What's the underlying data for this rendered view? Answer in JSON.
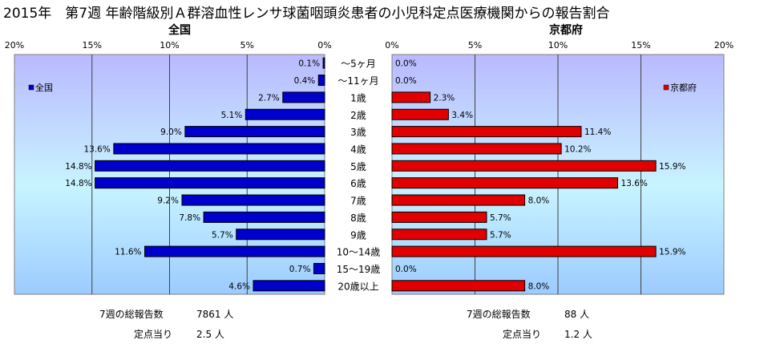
{
  "title": "2015年　第7週 年齢階級別Ａ群溶血性レンサ球菌咽頭炎患者の小児科定点医療機関からの報告割合",
  "panels": {
    "left": {
      "title": "全国",
      "legend": "全国",
      "color": "#0000cc",
      "total_label": "7週の総報告数",
      "total_value": "7861 人",
      "per_label": "定点当り",
      "per_value": "2.5 人"
    },
    "right": {
      "title": "京都府",
      "legend": "京都府",
      "color": "#e00000",
      "total_label": "7週の総報告数",
      "total_value": "88 人",
      "per_label": "定点当り",
      "per_value": "1.2 人"
    }
  },
  "chart_data": {
    "type": "bar",
    "orientation": "horizontal",
    "categories": [
      "～5ヶ月",
      "～11ヶ月",
      "1歳",
      "2歳",
      "3歳",
      "4歳",
      "5歳",
      "6歳",
      "7歳",
      "8歳",
      "9歳",
      "10～14歳",
      "15～19歳",
      "20歳以上"
    ],
    "series": [
      {
        "name": "全国",
        "values": [
          0.1,
          0.4,
          2.7,
          5.1,
          9.0,
          13.6,
          14.8,
          14.8,
          9.2,
          7.8,
          5.7,
          11.6,
          0.7,
          4.6
        ],
        "labels": [
          "0.1%",
          "0.4%",
          "2.7%",
          "5.1%",
          "9.0%",
          "13.6%",
          "14.8%",
          "14.8%",
          "9.2%",
          "7.8%",
          "5.7%",
          "11.6%",
          "0.7%",
          "4.6%"
        ]
      },
      {
        "name": "京都府",
        "values": [
          0.0,
          0.0,
          2.3,
          3.4,
          11.4,
          10.2,
          15.9,
          13.6,
          8.0,
          5.7,
          5.7,
          15.9,
          0.0,
          8.0
        ],
        "labels": [
          "0.0%",
          "0.0%",
          "2.3%",
          "3.4%",
          "11.4%",
          "10.2%",
          "15.9%",
          "13.6%",
          "8.0%",
          "5.7%",
          "5.7%",
          "15.9%",
          "0.0%",
          "8.0%"
        ]
      }
    ],
    "xlim": [
      0,
      20
    ],
    "ticks": [
      "0%",
      "5%",
      "10%",
      "15%",
      "20%"
    ],
    "grid": true
  }
}
